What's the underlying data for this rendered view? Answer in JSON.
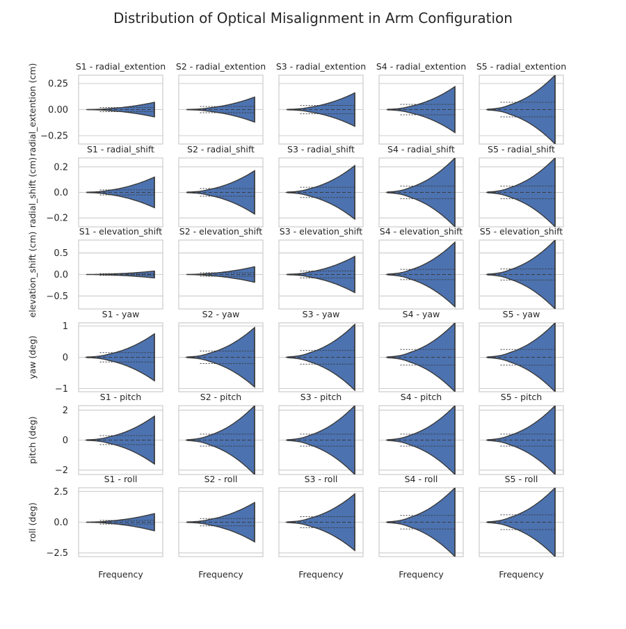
{
  "figure_title": "Distribution of Optical Misalignment in Arm Configuration",
  "chart_data": {
    "type": "violin-grid",
    "title": "Distribution of Optical Misalignment in Arm Configuration",
    "grid": true,
    "columns": [
      "S1",
      "S2",
      "S3",
      "S4",
      "S5"
    ],
    "xlabel": "Frequency",
    "rows": [
      {
        "name": "radial_extention",
        "ylabel": "radial_extention (cm)",
        "ylim": [
          -0.33,
          0.33
        ],
        "yticks": [
          -0.25,
          0,
          0.25
        ],
        "ytick_labels": [
          "−0.25",
          "0.00",
          "0.25"
        ],
        "panels": [
          {
            "title": "S1 - radial_extention",
            "max_extent": 0.07,
            "quartile": 0.02
          },
          {
            "title": "S2 - radial_extention",
            "max_extent": 0.12,
            "quartile": 0.03
          },
          {
            "title": "S3 - radial_extention",
            "max_extent": 0.16,
            "quartile": 0.04
          },
          {
            "title": "S4 - radial_extention",
            "max_extent": 0.22,
            "quartile": 0.05
          },
          {
            "title": "S5 - radial_extention",
            "max_extent": 0.33,
            "quartile": 0.07
          }
        ]
      },
      {
        "name": "radial_shift",
        "ylabel": "radial_shift (cm)",
        "ylim": [
          -0.27,
          0.27
        ],
        "yticks": [
          -0.2,
          0,
          0.2
        ],
        "ytick_labels": [
          "−0.2",
          "0.0",
          "0.2"
        ],
        "panels": [
          {
            "title": "S1 - radial_shift",
            "max_extent": 0.12,
            "quartile": 0.02
          },
          {
            "title": "S2 - radial_shift",
            "max_extent": 0.17,
            "quartile": 0.03
          },
          {
            "title": "S3 - radial_shift",
            "max_extent": 0.21,
            "quartile": 0.04
          },
          {
            "title": "S4 - radial_shift",
            "max_extent": 0.27,
            "quartile": 0.05
          },
          {
            "title": "S5 - radial_shift",
            "max_extent": 0.27,
            "quartile": 0.05
          }
        ]
      },
      {
        "name": "elevation_shift",
        "ylabel": "elevation_shift (cm)",
        "ylim": [
          -0.8,
          0.8
        ],
        "yticks": [
          -0.5,
          0,
          0.5
        ],
        "ytick_labels": [
          "−0.5",
          "0.0",
          "0.5"
        ],
        "panels": [
          {
            "title": "S1 - elevation_shift",
            "max_extent": 0.08,
            "quartile": 0.02
          },
          {
            "title": "S2 - elevation_shift",
            "max_extent": 0.18,
            "quartile": 0.04
          },
          {
            "title": "S3 - elevation_shift",
            "max_extent": 0.42,
            "quartile": 0.08
          },
          {
            "title": "S4 - elevation_shift",
            "max_extent": 0.75,
            "quartile": 0.12
          },
          {
            "title": "S5 - elevation_shift",
            "max_extent": 0.8,
            "quartile": 0.13
          }
        ]
      },
      {
        "name": "yaw",
        "ylabel": "yaw (deg)",
        "ylim": [
          -1.1,
          1.1
        ],
        "yticks": [
          -1,
          0,
          1
        ],
        "ytick_labels": [
          "−1",
          "0",
          "1"
        ],
        "panels": [
          {
            "title": "S1 - yaw",
            "max_extent": 0.75,
            "quartile": 0.15
          },
          {
            "title": "S2 - yaw",
            "max_extent": 0.95,
            "quartile": 0.2
          },
          {
            "title": "S3 - yaw",
            "max_extent": 1.05,
            "quartile": 0.22
          },
          {
            "title": "S4 - yaw",
            "max_extent": 1.1,
            "quartile": 0.25
          },
          {
            "title": "S5 - yaw",
            "max_extent": 1.1,
            "quartile": 0.25
          }
        ]
      },
      {
        "name": "pitch",
        "ylabel": "pitch (deg)",
        "ylim": [
          -2.3,
          2.3
        ],
        "yticks": [
          -2,
          0,
          2
        ],
        "ytick_labels": [
          "−2",
          "0",
          "2"
        ],
        "panels": [
          {
            "title": "S1 - pitch",
            "max_extent": 1.6,
            "quartile": 0.3
          },
          {
            "title": "S2 - pitch",
            "max_extent": 2.3,
            "quartile": 0.4
          },
          {
            "title": "S3 - pitch",
            "max_extent": 2.3,
            "quartile": 0.4
          },
          {
            "title": "S4 - pitch",
            "max_extent": 2.3,
            "quartile": 0.4
          },
          {
            "title": "S5 - pitch",
            "max_extent": 2.3,
            "quartile": 0.4
          }
        ]
      },
      {
        "name": "roll",
        "ylabel": "roll (deg)",
        "ylim": [
          -2.8,
          2.8
        ],
        "yticks": [
          -2.5,
          0,
          2.5
        ],
        "ytick_labels": [
          "−2.5",
          "0.0",
          "2.5"
        ],
        "panels": [
          {
            "title": "S1 - roll",
            "max_extent": 0.7,
            "quartile": 0.15
          },
          {
            "title": "S2 - roll",
            "max_extent": 1.6,
            "quartile": 0.3
          },
          {
            "title": "S3 - roll",
            "max_extent": 2.3,
            "quartile": 0.45
          },
          {
            "title": "S4 - roll",
            "max_extent": 2.8,
            "quartile": 0.55
          },
          {
            "title": "S5 - roll",
            "max_extent": 2.8,
            "quartile": 0.6
          }
        ]
      }
    ]
  },
  "colors": {
    "violin_fill": "#4c72b0",
    "violin_edge": "#3a3a3a",
    "grid": "#cccccc",
    "spine": "#cccccc",
    "text": "#262626"
  }
}
